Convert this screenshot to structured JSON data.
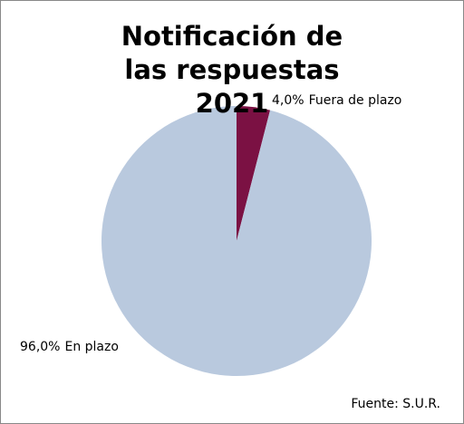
{
  "chart_data": {
    "type": "pie",
    "title": "Notificación de las respuestas 2021",
    "categories": [
      "Fuera de plazo",
      "En plazo"
    ],
    "values": [
      4,
      96
    ],
    "value_labels": [
      "4,0%",
      "96,0%"
    ],
    "colors": [
      "#7b1143",
      "#b9c9de"
    ],
    "annotation": "Fuente: S.U.R."
  }
}
